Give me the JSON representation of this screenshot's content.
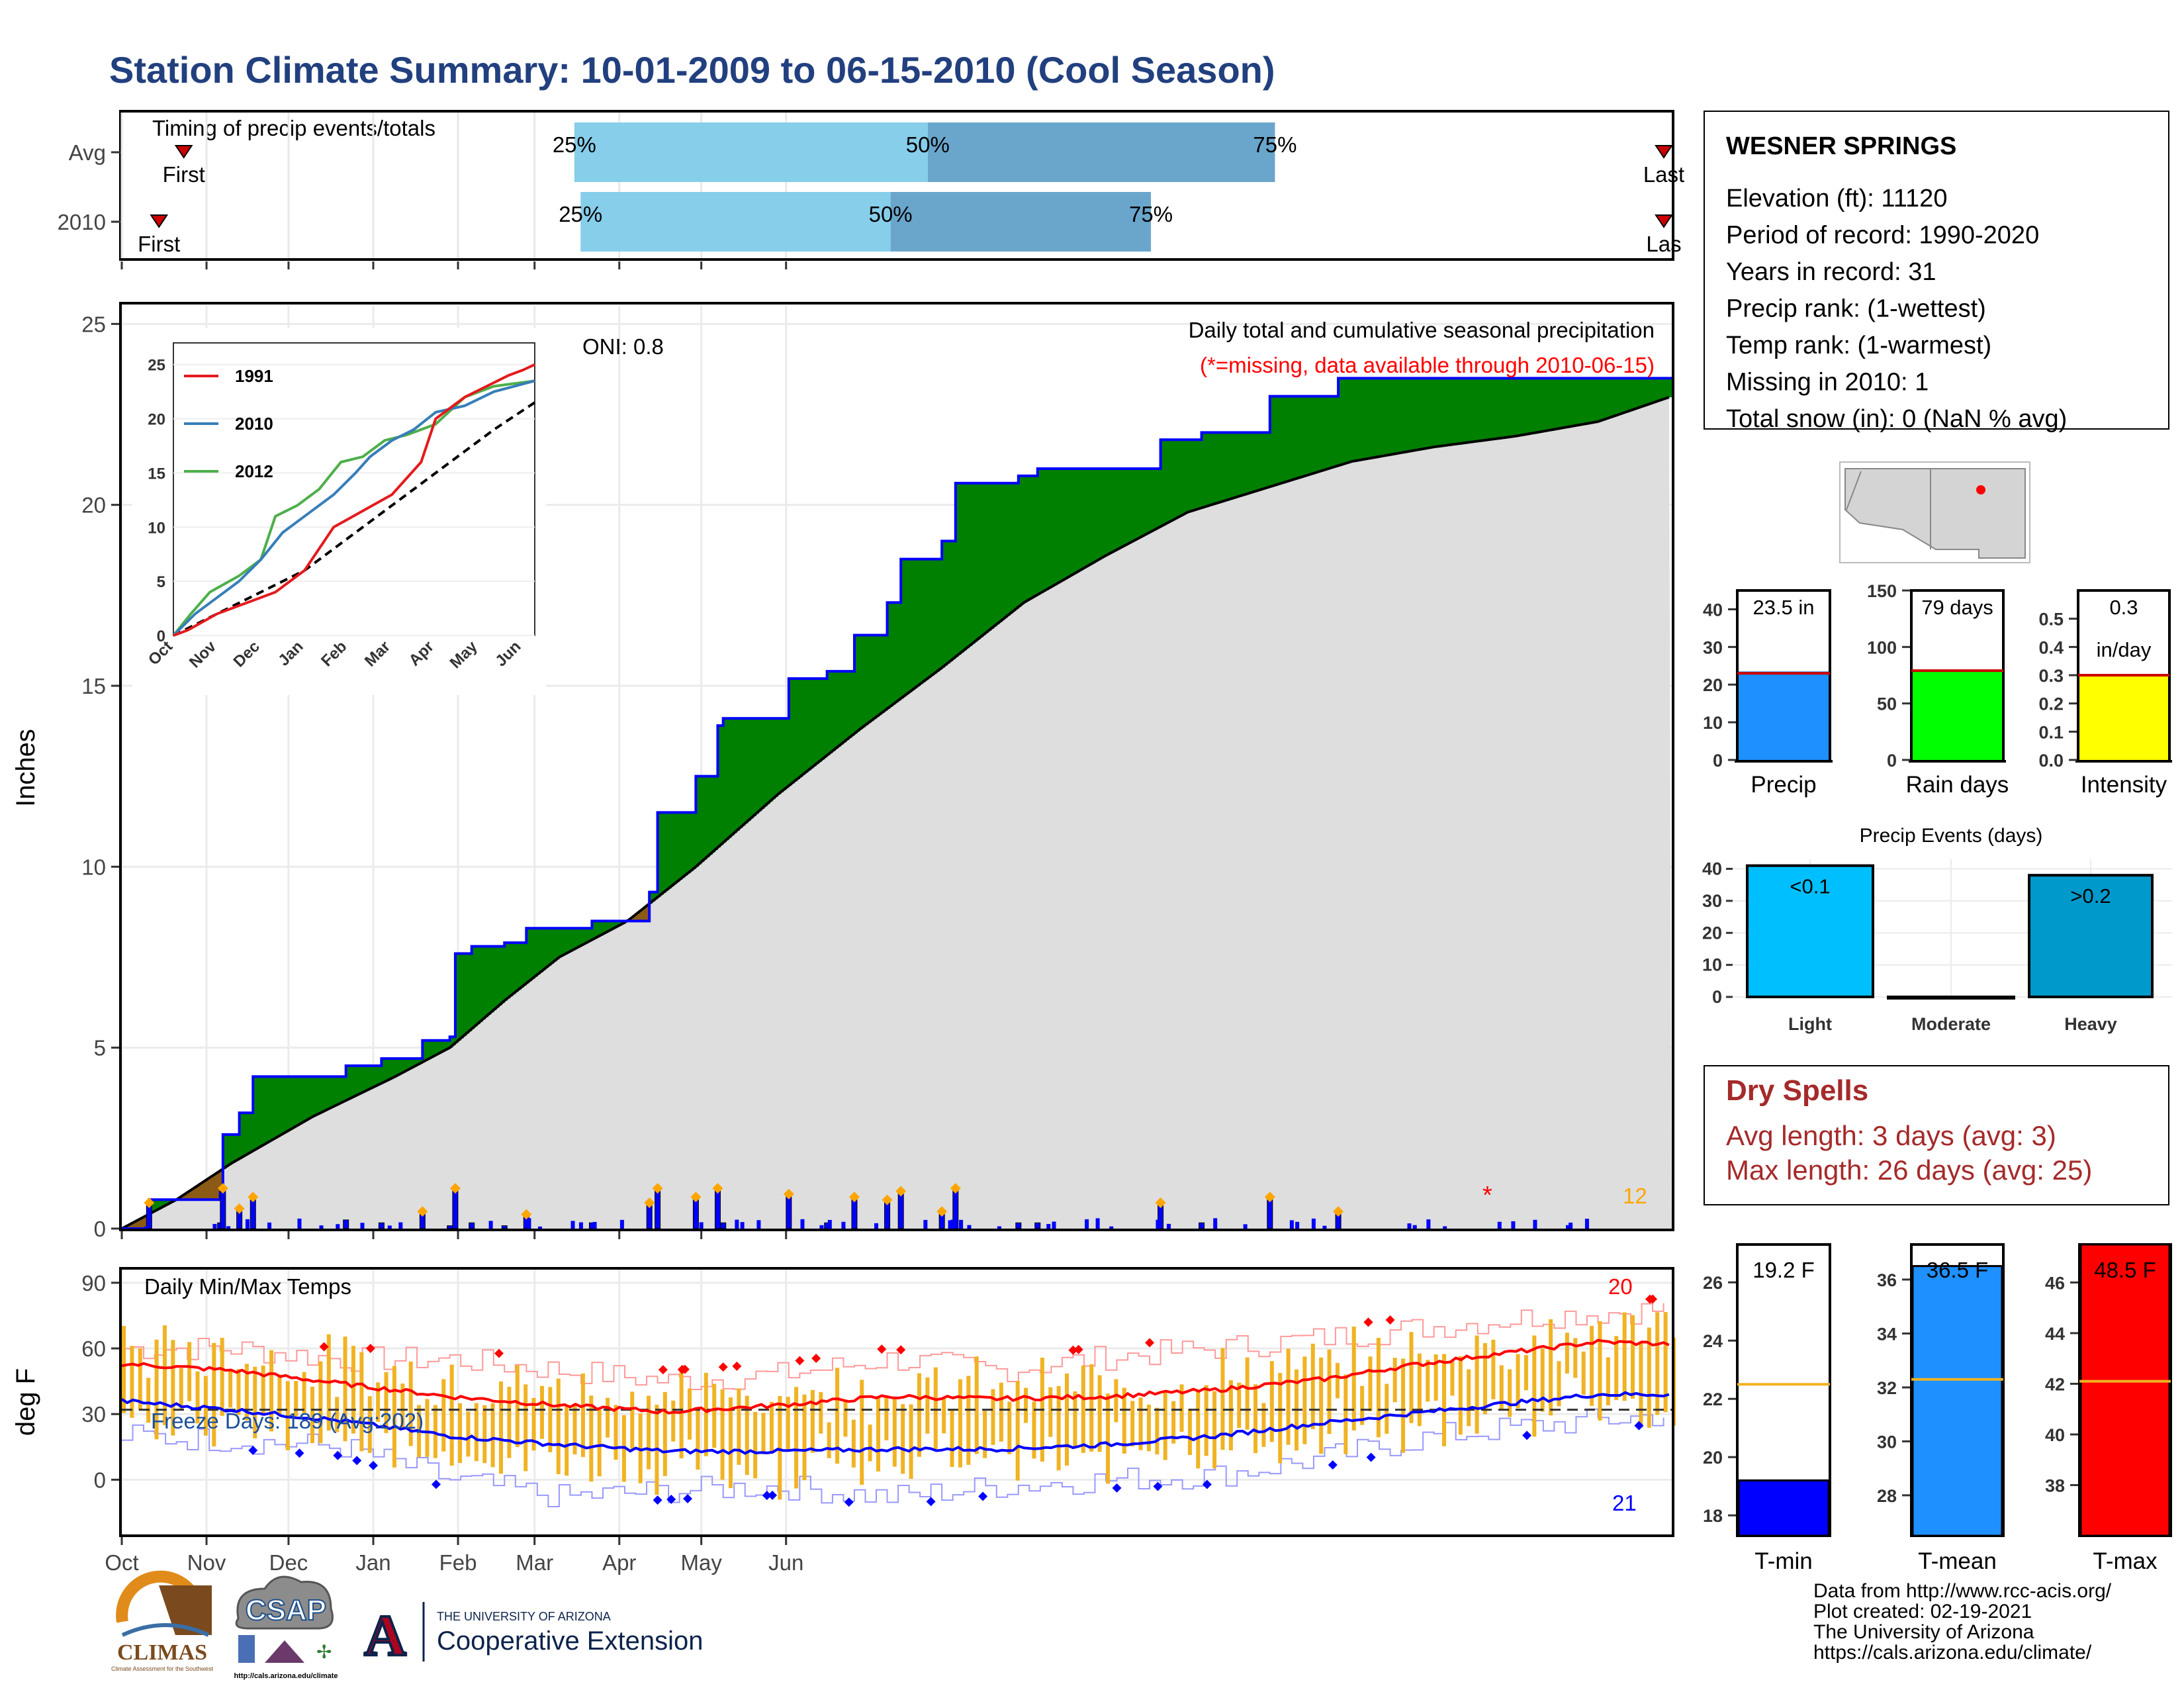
{
  "title": "Station Climate Summary: 10-01-2009 to 06-15-2010 (Cool Season)",
  "timing": {
    "panel_title": "Timing of precip events/totals",
    "rows": [
      {
        "label": "Avg",
        "first_label": "First",
        "last_label": "Last",
        "first_day": 10,
        "q25": 73,
        "q50": 130,
        "q75": 186,
        "last_day": 250
      },
      {
        "label": "2010",
        "first_label": "First",
        "last_label": "Las",
        "first_day": 6,
        "q25": 74,
        "q50": 124,
        "q75": 166,
        "last_day": 250
      }
    ],
    "q_labels": [
      "25%",
      "50%",
      "75%"
    ]
  },
  "precip_panel": {
    "ylabel": "Inches",
    "y_ticks": [
      "0",
      "5",
      "10",
      "15",
      "20",
      "25"
    ],
    "oni": "ONI: 0.8",
    "header": "Daily total and cumulative seasonal precipitation",
    "missing_note": "(*=missing, data available through 2010-06-15)",
    "missing_marker": "*",
    "count_label": "12",
    "ylim": [
      0,
      25.5
    ]
  },
  "x_months": [
    "Oct",
    "Nov",
    "Dec",
    "Jan",
    "Feb",
    "Mar",
    "Apr",
    "May",
    "Jun"
  ],
  "inset": {
    "y_ticks": [
      "0",
      "5",
      "10",
      "15",
      "20",
      "25"
    ],
    "x_months": [
      "Oct",
      "Nov",
      "Dec",
      "Jan",
      "Feb",
      "Mar",
      "Apr",
      "May",
      "Jun"
    ],
    "legend": [
      {
        "name": "1991",
        "color": "#e41a1c"
      },
      {
        "name": "2010",
        "color": "#377eb8"
      },
      {
        "name": "2012",
        "color": "#4daf4a"
      }
    ]
  },
  "temp_panel": {
    "ylabel": "deg F",
    "y_ticks": [
      "0",
      "30",
      "60",
      "90"
    ],
    "title": "Daily Min/Max Temps",
    "freeze_label": "Freeze Days: 189 (Avg:202)",
    "max_count": "20",
    "min_count": "21",
    "freeze_line": 32
  },
  "station": {
    "name": "WESNER SPRINGS",
    "lines": [
      "Elevation (ft): 11120",
      "Period of record: 1990-2020",
      "Years in record: 31",
      "Precip rank:  (1-wettest)",
      "Temp rank:  (1-warmest)",
      "Missing in 2010: 1",
      "Total snow (in): 0 (NaN % avg)"
    ]
  },
  "summary_bars": [
    {
      "label": "Precip",
      "value_text": "23.5 in",
      "value": 23.5,
      "avg": 23.0,
      "ymax": 45,
      "ticks": [
        "0",
        "10",
        "20",
        "30",
        "40"
      ],
      "tick_vals": [
        0,
        10,
        20,
        30,
        40
      ],
      "color": "#1e90ff"
    },
    {
      "label": "Rain days",
      "value_text": "79 days",
      "value": 79,
      "avg": 79,
      "ymax": 150,
      "ticks": [
        "0",
        "50",
        "100",
        "150"
      ],
      "tick_vals": [
        0,
        50,
        100,
        150
      ],
      "color": "#00ff00"
    },
    {
      "label": "Intensity",
      "value_text": "0.3",
      "value_text2": "in/day",
      "value": 0.3,
      "avg": 0.3,
      "ymax": 0.6,
      "ticks": [
        "0.0",
        "0.1",
        "0.2",
        "0.3",
        "0.4",
        "0.5"
      ],
      "tick_vals": [
        0,
        0.1,
        0.2,
        0.3,
        0.4,
        0.5
      ],
      "color": "#ffff00"
    }
  ],
  "events": {
    "title": "Precip Events (days)",
    "categories": [
      "Light",
      "Moderate",
      "Heavy"
    ],
    "values": [
      41,
      0,
      38
    ],
    "labels": [
      "<0.1",
      "",
      ">0.2"
    ],
    "colors": [
      "#00bfff",
      "#87ceeb",
      "#0099cc"
    ],
    "ticks": [
      "0",
      "10",
      "20",
      "30",
      "40"
    ]
  },
  "dry_spells": {
    "title": "Dry Spells",
    "lines": [
      "Avg length: 3 days (avg: 3)",
      "Max length: 26 days (avg: 25)"
    ]
  },
  "temp_bars": [
    {
      "label": "T-min",
      "value_text": "19.2 F",
      "value": 19.2,
      "avg": 22.5,
      "ymin": 17.3,
      "ymax": 27.3,
      "ticks": [
        "18",
        "20",
        "22",
        "24",
        "26"
      ],
      "tick_vals": [
        18,
        20,
        22,
        24,
        26
      ],
      "color": "#0000ff"
    },
    {
      "label": "T-mean",
      "value_text": "36.5 F",
      "value": 36.5,
      "avg": 32.3,
      "ymin": 26.5,
      "ymax": 37.3,
      "ticks": [
        "28",
        "30",
        "32",
        "34",
        "36"
      ],
      "tick_vals": [
        28,
        30,
        32,
        34,
        36
      ],
      "color": "#1e90ff"
    },
    {
      "label": "T-max",
      "value_text": "48.5 F",
      "value": 48.5,
      "avg": 42.1,
      "ymin": 36.0,
      "ymax": 47.5,
      "ticks": [
        "38",
        "40",
        "42",
        "44",
        "46"
      ],
      "tick_vals": [
        38,
        40,
        42,
        44,
        46
      ],
      "color": "#ff0000"
    }
  ],
  "logos": {
    "climas": "CLIMAS",
    "climas_sub": "Climate Assessment for the Southwest",
    "csap": "CSAP",
    "csap_url": "http://cals.arizona.edu/climate",
    "ua_small": "THE UNIVERSITY OF ARIZONA",
    "ua_big": "Cooperative Extension",
    "ua_letter": "A"
  },
  "footer": [
    "Data from http://www.rcc-acis.org/",
    "Plot created: 02-19-2021",
    "The University of Arizona",
    "https://cals.arizona.edu/climate/"
  ],
  "chart_data": {
    "type": "area",
    "cumulative_2010_inches": [
      [
        0,
        0
      ],
      [
        10,
        0.8
      ],
      [
        36,
        1.0
      ],
      [
        37,
        2.6
      ],
      [
        43,
        3.2
      ],
      [
        48,
        4.2
      ],
      [
        80,
        4.2
      ],
      [
        82,
        4.5
      ],
      [
        95,
        4.7
      ],
      [
        110,
        5.2
      ],
      [
        120,
        5.3
      ],
      [
        122,
        7.6
      ],
      [
        128,
        7.8
      ],
      [
        140,
        7.9
      ],
      [
        148,
        8.3
      ],
      [
        170,
        8.3
      ],
      [
        172,
        8.5
      ],
      [
        193,
        9.3
      ],
      [
        196,
        11.5
      ],
      [
        210,
        12.5
      ],
      [
        218,
        13.9
      ],
      [
        220,
        14.1
      ],
      [
        240,
        14.1
      ],
      [
        244,
        15.2
      ],
      [
        258,
        15.4
      ],
      [
        268,
        16.4
      ],
      [
        280,
        17.3
      ],
      [
        285,
        18.5
      ],
      [
        300,
        19.0
      ],
      [
        305,
        20.6
      ],
      [
        328,
        20.8
      ],
      [
        335,
        21.0
      ],
      [
        372,
        21.0
      ],
      [
        380,
        21.8
      ],
      [
        395,
        22.0
      ],
      [
        420,
        23.0
      ],
      [
        445,
        23.5
      ],
      [
        500,
        23.5
      ],
      [
        560,
        23.5
      ],
      [
        567,
        23.5
      ]
    ],
    "cumulative_avg_inches": [
      [
        0,
        0
      ],
      [
        20,
        0.8
      ],
      [
        40,
        1.8
      ],
      [
        70,
        3.1
      ],
      [
        100,
        4.2
      ],
      [
        120,
        5.0
      ],
      [
        140,
        6.3
      ],
      [
        160,
        7.5
      ],
      [
        185,
        8.5
      ],
      [
        210,
        10.0
      ],
      [
        240,
        12.0
      ],
      [
        270,
        13.8
      ],
      [
        300,
        15.5
      ],
      [
        330,
        17.3
      ],
      [
        360,
        18.6
      ],
      [
        390,
        19.8
      ],
      [
        420,
        20.5
      ],
      [
        450,
        21.2
      ],
      [
        480,
        21.6
      ],
      [
        510,
        21.9
      ],
      [
        540,
        22.3
      ],
      [
        567,
        23.0
      ]
    ],
    "inset_series": {
      "1991": [
        [
          0,
          0
        ],
        [
          10,
          0.5
        ],
        [
          30,
          2
        ],
        [
          50,
          3
        ],
        [
          70,
          4
        ],
        [
          90,
          6
        ],
        [
          110,
          10
        ],
        [
          130,
          11.5
        ],
        [
          150,
          13
        ],
        [
          170,
          16
        ],
        [
          180,
          20
        ],
        [
          190,
          21
        ],
        [
          200,
          22
        ],
        [
          215,
          23
        ],
        [
          230,
          24
        ],
        [
          240,
          24.5
        ],
        [
          248,
          25
        ]
      ],
      "2010": [
        [
          0,
          0
        ],
        [
          15,
          2
        ],
        [
          30,
          3.5
        ],
        [
          45,
          5
        ],
        [
          60,
          7
        ],
        [
          75,
          9.5
        ],
        [
          90,
          11
        ],
        [
          110,
          13
        ],
        [
          125,
          15
        ],
        [
          135,
          16.5
        ],
        [
          150,
          18
        ],
        [
          165,
          19
        ],
        [
          180,
          20.6
        ],
        [
          200,
          21.2
        ],
        [
          220,
          22.5
        ],
        [
          248,
          23.5
        ]
      ],
      "2012": [
        [
          0,
          0
        ],
        [
          12,
          2
        ],
        [
          25,
          4
        ],
        [
          45,
          5.5
        ],
        [
          60,
          7
        ],
        [
          70,
          11
        ],
        [
          85,
          12
        ],
        [
          100,
          13.5
        ],
        [
          115,
          16
        ],
        [
          130,
          16.5
        ],
        [
          145,
          18
        ],
        [
          160,
          18.5
        ],
        [
          180,
          19.5
        ],
        [
          200,
          22
        ],
        [
          220,
          23
        ],
        [
          248,
          23.5
        ]
      ],
      "avg": [
        [
          0,
          0
        ],
        [
          30,
          2
        ],
        [
          60,
          4
        ],
        [
          90,
          6
        ],
        [
          120,
          9
        ],
        [
          150,
          12
        ],
        [
          180,
          15
        ],
        [
          200,
          17
        ],
        [
          220,
          19
        ],
        [
          248,
          21.5
        ]
      ]
    },
    "temp_means": {
      "max_smoothed": [
        [
          0,
          53
        ],
        [
          40,
          50
        ],
        [
          80,
          44
        ],
        [
          120,
          38
        ],
        [
          160,
          34
        ],
        [
          200,
          31
        ],
        [
          240,
          34
        ],
        [
          280,
          38
        ],
        [
          320,
          37
        ],
        [
          360,
          38
        ],
        [
          400,
          41
        ],
        [
          440,
          46
        ],
        [
          470,
          52
        ],
        [
          500,
          57
        ],
        [
          540,
          63
        ],
        [
          567,
          62
        ]
      ],
      "min_smoothed": [
        [
          0,
          36
        ],
        [
          40,
          32
        ],
        [
          80,
          27
        ],
        [
          120,
          20
        ],
        [
          160,
          16
        ],
        [
          200,
          13
        ],
        [
          240,
          13
        ],
        [
          280,
          14
        ],
        [
          320,
          14
        ],
        [
          360,
          16
        ],
        [
          400,
          20
        ],
        [
          440,
          26
        ],
        [
          470,
          30
        ],
        [
          500,
          34
        ],
        [
          540,
          39
        ],
        [
          567,
          39
        ]
      ],
      "max_extreme": [
        [
          0,
          60
        ],
        [
          40,
          60
        ],
        [
          80,
          55
        ],
        [
          120,
          55
        ],
        [
          160,
          50
        ],
        [
          200,
          45
        ],
        [
          240,
          48
        ],
        [
          280,
          55
        ],
        [
          320,
          50
        ],
        [
          360,
          56
        ],
        [
          400,
          60
        ],
        [
          440,
          65
        ],
        [
          480,
          70
        ],
        [
          520,
          75
        ],
        [
          567,
          78
        ]
      ],
      "min_extreme": [
        [
          0,
          20
        ],
        [
          40,
          18
        ],
        [
          80,
          15
        ],
        [
          120,
          0
        ],
        [
          160,
          -8
        ],
        [
          200,
          -5
        ],
        [
          240,
          -3
        ],
        [
          280,
          -8
        ],
        [
          320,
          -3
        ],
        [
          360,
          0
        ],
        [
          400,
          2
        ],
        [
          440,
          10
        ],
        [
          480,
          20
        ],
        [
          520,
          25
        ],
        [
          567,
          30
        ]
      ]
    }
  }
}
